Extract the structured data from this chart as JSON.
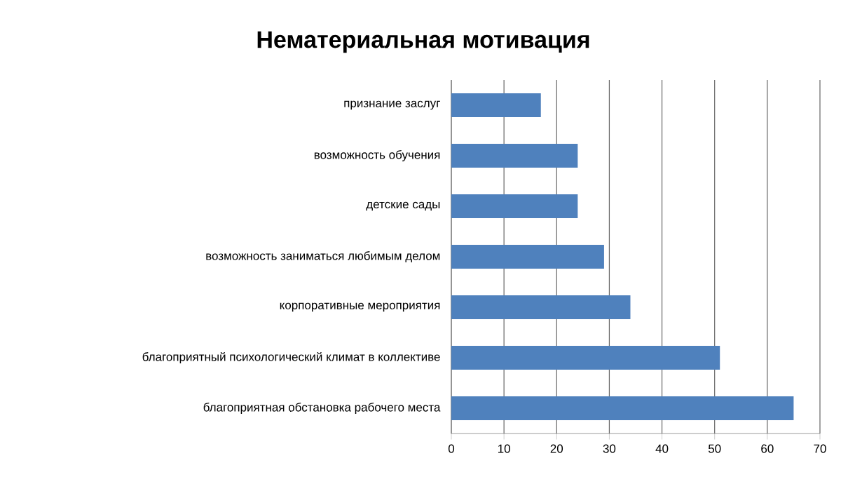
{
  "chart_data": {
    "type": "bar",
    "orientation": "horizontal",
    "title": "Нематериальная мотивация",
    "categories": [
      "признание заслуг",
      "возможность обучения",
      "детские сады",
      "возможность заниматься любимым делом",
      "корпоративные мероприятия",
      "благоприятный психологический климат в коллективе",
      "благоприятная обстановка рабочего места"
    ],
    "values": [
      17,
      24,
      24,
      29,
      34,
      51,
      65
    ],
    "color": "#4f81bd",
    "xlim": [
      0,
      70
    ],
    "xticks": [
      0,
      10,
      20,
      30,
      40,
      50,
      60,
      70
    ],
    "grid": "x"
  }
}
